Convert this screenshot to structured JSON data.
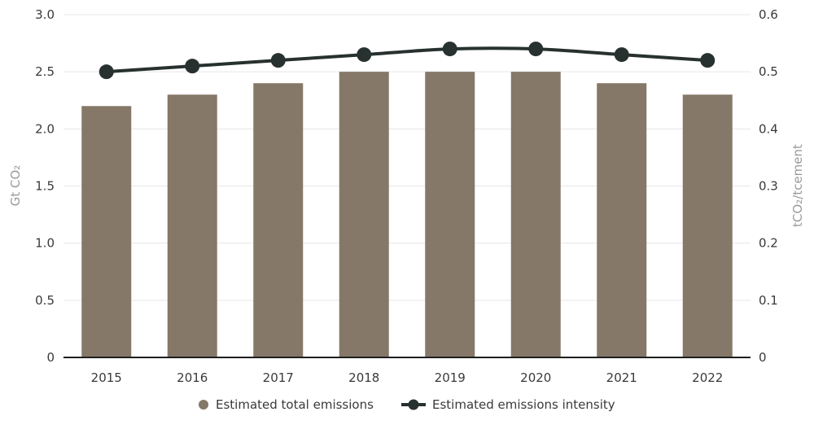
{
  "chart_data": {
    "type": "bar",
    "categories": [
      "2015",
      "2016",
      "2017",
      "2018",
      "2019",
      "2020",
      "2021",
      "2022"
    ],
    "series": [
      {
        "name": "Estimated total emissions",
        "type": "bar",
        "axis": "left",
        "color": "#857868",
        "values": [
          2.2,
          2.3,
          2.4,
          2.5,
          2.5,
          2.5,
          2.4,
          2.3
        ]
      },
      {
        "name": "Estimated emissions intensity",
        "type": "line",
        "axis": "right",
        "color": "#27312f",
        "values": [
          0.5,
          0.51,
          0.52,
          0.53,
          0.54,
          0.54,
          0.53,
          0.52
        ]
      }
    ],
    "y_left": {
      "label": "Gt CO₂",
      "ylim": [
        0,
        3.0
      ],
      "ticks": [
        "0",
        "0.5",
        "1.0",
        "1.5",
        "2.0",
        "2.5",
        "3.0"
      ]
    },
    "y_right": {
      "label": "tCO₂/tcement",
      "ylim": [
        0,
        0.6
      ],
      "ticks": [
        "0",
        "0.1",
        "0.2",
        "0.3",
        "0.4",
        "0.5",
        "0.6"
      ]
    },
    "grid": true,
    "legend_position": "bottom"
  }
}
